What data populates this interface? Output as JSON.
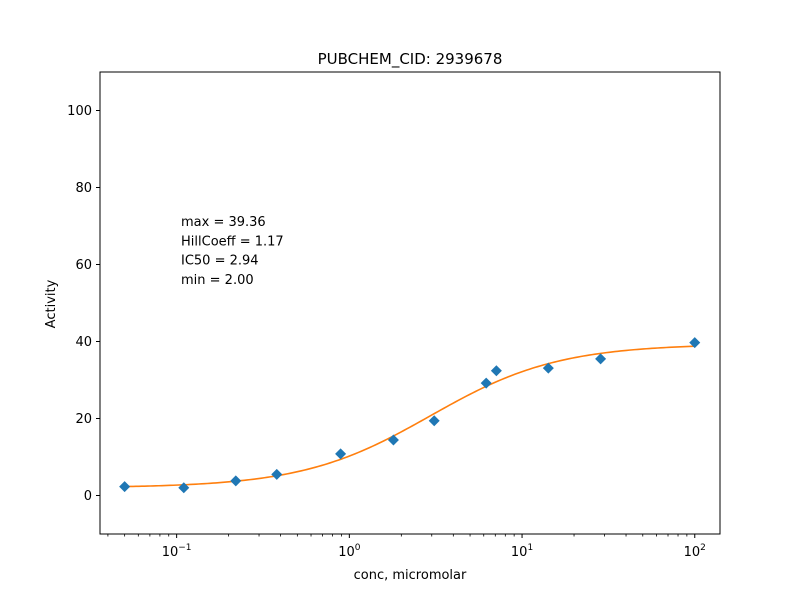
{
  "chart_data": {
    "type": "scatter",
    "title": "PUBCHEM_CID: 2939678",
    "xlabel": "conc, micromolar",
    "ylabel": "Activity",
    "xscale": "log",
    "xlim": [
      0.036,
      140
    ],
    "ylim": [
      -10,
      110
    ],
    "yticks": [
      0,
      20,
      40,
      60,
      80,
      100
    ],
    "xticks": [
      {
        "value": 0.1,
        "base": "10",
        "exp": "−1"
      },
      {
        "value": 1,
        "base": "10",
        "exp": "0"
      },
      {
        "value": 10,
        "base": "10",
        "exp": "1"
      },
      {
        "value": 100,
        "base": "10",
        "exp": "2"
      }
    ],
    "annotations": [
      "max = 39.36",
      "HillCoeff = 1.17",
      "IC50 = 2.94",
      "min = 2.00"
    ],
    "series": [
      {
        "kind": "points",
        "marker": "diamond",
        "color": "#1f77b4",
        "x": [
          0.05,
          0.11,
          0.22,
          0.38,
          0.89,
          1.8,
          3.1,
          6.2,
          7.1,
          14.2,
          28.5,
          100
        ],
        "y": [
          2.3,
          2.0,
          3.8,
          5.5,
          10.8,
          14.4,
          19.4,
          29.2,
          32.4,
          33.1,
          35.5,
          39.7
        ]
      },
      {
        "kind": "fit",
        "color": "#ff7f0e",
        "model": "hill",
        "max": 39.36,
        "min": 2.0,
        "ic50": 2.94,
        "hill": 1.17,
        "x_range": [
          0.05,
          100
        ]
      }
    ]
  }
}
